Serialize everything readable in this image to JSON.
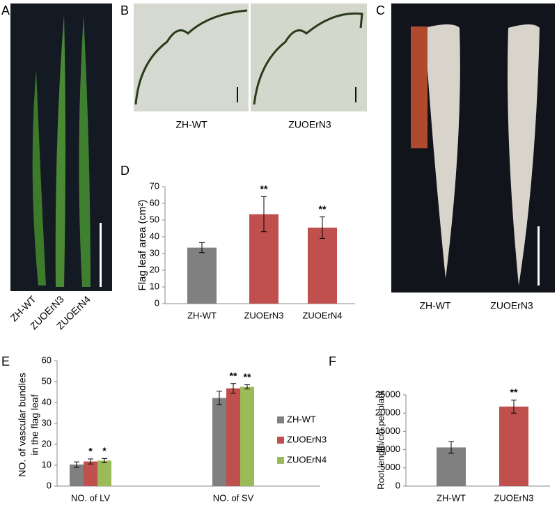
{
  "panels": {
    "A": {
      "label": "A",
      "captions": [
        "ZH-WT",
        "ZUOErN3",
        "ZUOErN4"
      ]
    },
    "B": {
      "label": "B",
      "captions": [
        "ZH-WT",
        "ZUOErN3"
      ]
    },
    "C": {
      "label": "C",
      "captions": [
        "ZH-WT",
        "ZUOErN3"
      ]
    },
    "D": {
      "label": "D"
    },
    "E": {
      "label": "E"
    },
    "F": {
      "label": "F"
    }
  },
  "chart_data": [
    {
      "type": "bar",
      "y_label": "Flag leaf area (cm²)",
      "categories": [
        "ZH-WT",
        "ZUOErN3",
        "ZUOErN4"
      ],
      "values": [
        33.5,
        53.5,
        45.5
      ],
      "errors": [
        3,
        10.5,
        6.5
      ],
      "annotations": [
        null,
        "**",
        "**"
      ],
      "colors": [
        "#808080",
        "#c0504d",
        "#c0504d"
      ],
      "ylim": [
        0,
        70
      ],
      "yticks": [
        0,
        10,
        20,
        30,
        40,
        50,
        60,
        70
      ]
    },
    {
      "type": "grouped_bar",
      "y_label": [
        "NO. of vascular bundles",
        "in the flag leaf"
      ],
      "categories": [
        "NO. of LV",
        "NO. of SV"
      ],
      "series": [
        {
          "name": "ZH-WT",
          "color": "#808080",
          "values": [
            10.3,
            42.2
          ],
          "errors": [
            1.3,
            3.2
          ],
          "annotations": [
            null,
            null
          ]
        },
        {
          "name": "ZUOErN3",
          "color": "#c0504d",
          "values": [
            11.8,
            46.8
          ],
          "errors": [
            1.2,
            2.3
          ],
          "annotations": [
            "*",
            "**"
          ]
        },
        {
          "name": "ZUOErN4",
          "color": "#9bbb59",
          "values": [
            12.2,
            47.5
          ],
          "errors": [
            1.0,
            1.0
          ],
          "annotations": [
            "*",
            "**"
          ]
        }
      ],
      "ylim": [
        0,
        60
      ],
      "yticks": [
        0,
        10,
        20,
        30,
        40,
        50,
        60
      ]
    },
    {
      "type": "bar",
      "y_label": "Root length/cm per plant",
      "categories": [
        "ZH-WT",
        "ZUOErN3"
      ],
      "values": [
        10600,
        21800
      ],
      "errors": [
        1600,
        1800
      ],
      "annotations": [
        null,
        "**"
      ],
      "colors": [
        "#808080",
        "#c0504d"
      ],
      "ylim": [
        0,
        25000
      ],
      "yticks": [
        0,
        5000,
        10000,
        15000,
        20000,
        25000
      ]
    }
  ]
}
